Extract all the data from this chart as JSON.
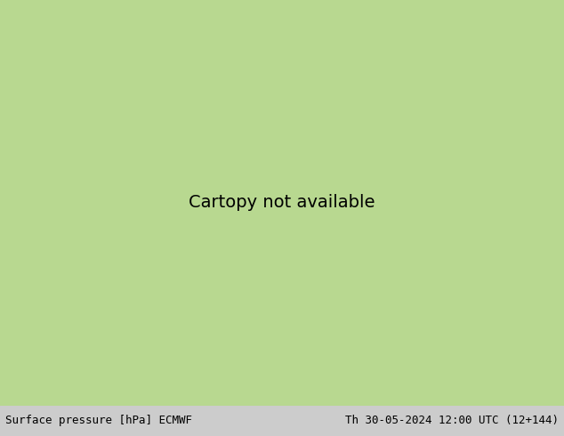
{
  "title_left": "Surface pressure [hPa] ECMWF",
  "title_right": "Th 30-05-2024 12:00 UTC (12+144)",
  "bg_map_color": "#b8d890",
  "ocean_color": "#c8d8f0",
  "land_color": "#b8d890",
  "contour_color_red": "#cc0000",
  "contour_color_blue": "#0000cc",
  "contour_color_black": "#000000",
  "text_color": "#000000",
  "bottom_bar_color": "#cccccc",
  "fig_width": 6.34,
  "fig_height": 4.9,
  "dpi": 100,
  "lon_min": -155,
  "lon_max": -50,
  "lat_min": 15,
  "lat_max": 65,
  "pressure_base": 1013.0
}
